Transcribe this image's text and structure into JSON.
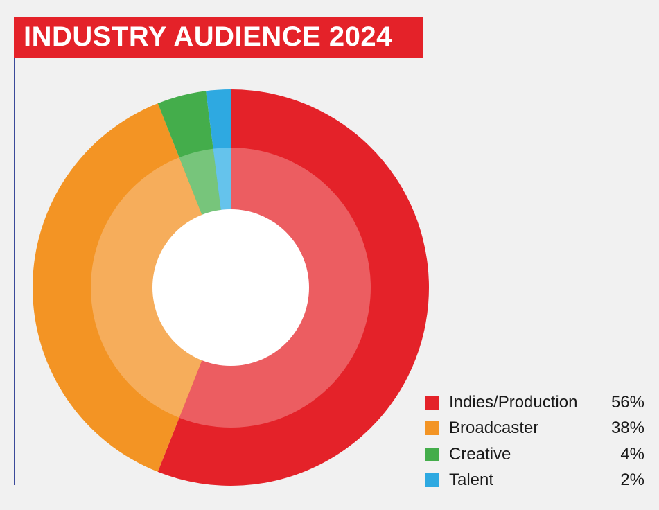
{
  "chart_data": {
    "type": "pie",
    "title": "INDUSTRY AUDIENCE 2024",
    "categories": [
      "Indies/Production",
      "Broadcaster",
      "Creative",
      "Talent"
    ],
    "values": [
      56,
      38,
      4,
      2
    ],
    "value_labels": [
      "56%",
      "38%",
      "4%",
      "2%"
    ],
    "colors": [
      "#e42229",
      "#f39424",
      "#44ad4b",
      "#2ea9e1"
    ],
    "inner_ring_colors": [
      "#ec5d61",
      "#f6ad5b",
      "#77c57b",
      "#65c3ec"
    ],
    "legend_position": "bottom-right"
  }
}
